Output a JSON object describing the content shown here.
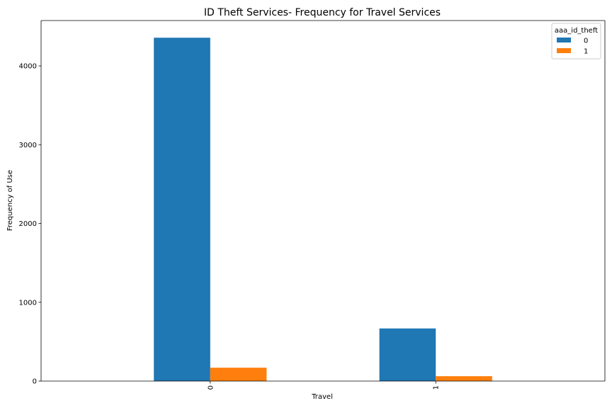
{
  "chart_data": {
    "type": "bar",
    "title": "ID Theft Services- Frequency for Travel Services",
    "xlabel": "Travel",
    "ylabel": "Frequency of Use",
    "categories": [
      "0",
      "1"
    ],
    "series": [
      {
        "name": "0",
        "color": "#1f77b4",
        "values": [
          4358,
          668
        ]
      },
      {
        "name": "1",
        "color": "#ff7f0e",
        "values": [
          170,
          62
        ]
      }
    ],
    "ylim": [
      0,
      4576
    ],
    "yticks": [
      0,
      1000,
      2000,
      3000,
      4000
    ],
    "grid": false,
    "legend": {
      "title": "aaa_id_theft",
      "placement": "top-right"
    }
  }
}
